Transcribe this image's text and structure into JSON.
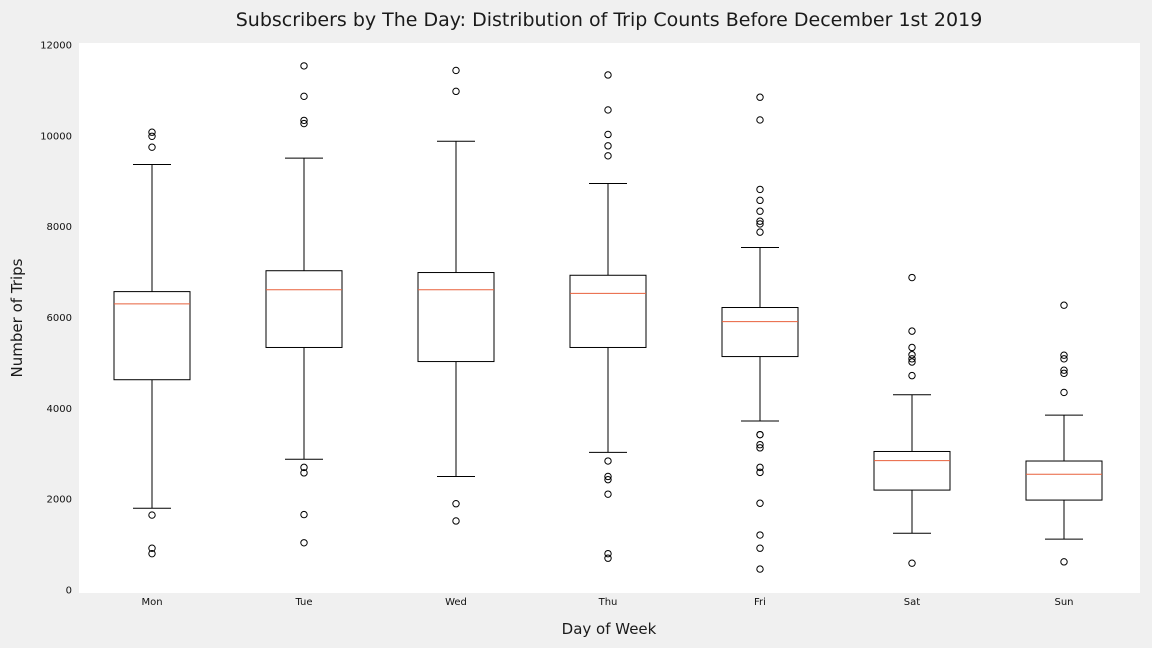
{
  "chart_data": {
    "type": "box",
    "title": "Subscribers by The Day: Distribution of Trip Counts Before December 1st 2019",
    "xlabel": "Day of Week",
    "ylabel": "Number of Trips",
    "ylim": [
      0,
      12000
    ],
    "yticks": [
      0,
      2000,
      4000,
      6000,
      8000,
      10000,
      12000
    ],
    "grid": false,
    "colors": {
      "box": "#000000",
      "median": "#e8603c",
      "plot_bg": "#ffffff",
      "page_bg": "#f0f0f0"
    },
    "categories": [
      "Mon",
      "Tue",
      "Wed",
      "Thu",
      "Fri",
      "Sat",
      "Sun"
    ],
    "boxes": [
      {
        "whisker_low": 1800,
        "q1": 4630,
        "median": 6300,
        "q3": 6570,
        "whisker_high": 9370,
        "outliers": [
          1650,
          920,
          800,
          9750,
          9990,
          10080
        ]
      },
      {
        "whisker_low": 2880,
        "q1": 5340,
        "median": 6610,
        "q3": 7030,
        "whisker_high": 9510,
        "outliers": [
          2700,
          2580,
          1660,
          1040,
          10270,
          10340,
          10870,
          11540
        ]
      },
      {
        "whisker_low": 2500,
        "q1": 5030,
        "median": 6610,
        "q3": 6990,
        "whisker_high": 9880,
        "outliers": [
          1900,
          1520,
          10980,
          11440
        ]
      },
      {
        "whisker_low": 3030,
        "q1": 5340,
        "median": 6530,
        "q3": 6930,
        "whisker_high": 8950,
        "outliers": [
          2840,
          2500,
          2430,
          2110,
          800,
          700,
          9560,
          9780,
          10030,
          10570,
          11340
        ]
      },
      {
        "whisker_low": 3720,
        "q1": 5140,
        "median": 5910,
        "q3": 6220,
        "whisker_high": 7540,
        "outliers": [
          3420,
          3420,
          3200,
          3130,
          2700,
          2590,
          1910,
          1210,
          920,
          460,
          7880,
          8060,
          8120,
          8340,
          8580,
          8820,
          10350,
          10850
        ]
      },
      {
        "whisker_low": 1250,
        "q1": 2200,
        "median": 2850,
        "q3": 3050,
        "whisker_high": 4300,
        "outliers": [
          590,
          4720,
          5020,
          5090,
          5180,
          5340,
          5700,
          6880
        ]
      },
      {
        "whisker_low": 1120,
        "q1": 1980,
        "median": 2550,
        "q3": 2840,
        "whisker_high": 3850,
        "outliers": [
          620,
          4350,
          4770,
          4840,
          5090,
          5170,
          6270
        ]
      }
    ]
  }
}
